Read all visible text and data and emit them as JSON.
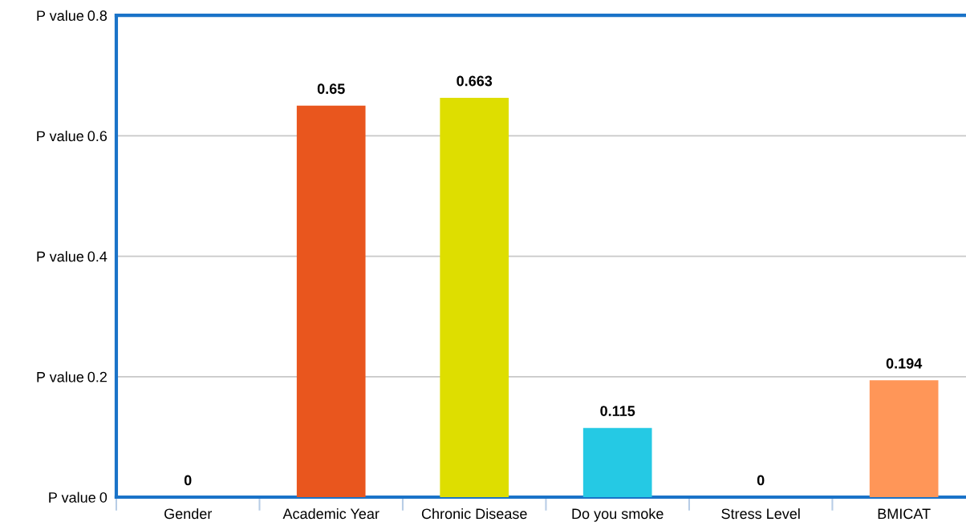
{
  "chart_data": {
    "type": "bar",
    "categories": [
      "Gender",
      "Academic Year",
      "Chronic Disease",
      "Do you smoke",
      "Stress Level",
      "BMICAT"
    ],
    "values": [
      0,
      0.65,
      0.663,
      0.115,
      0,
      0.194
    ],
    "colors": [
      "#4a7fc1",
      "#e9561e",
      "#dede00",
      "#25c9e4",
      "#8e6bbf",
      "#ff9658"
    ],
    "ylim": [
      0,
      0.8
    ],
    "yticks": [
      0,
      0.2,
      0.4,
      0.6,
      0.8
    ],
    "ylabel": "P value",
    "grid": "y",
    "data_labels": true,
    "legend": false
  }
}
